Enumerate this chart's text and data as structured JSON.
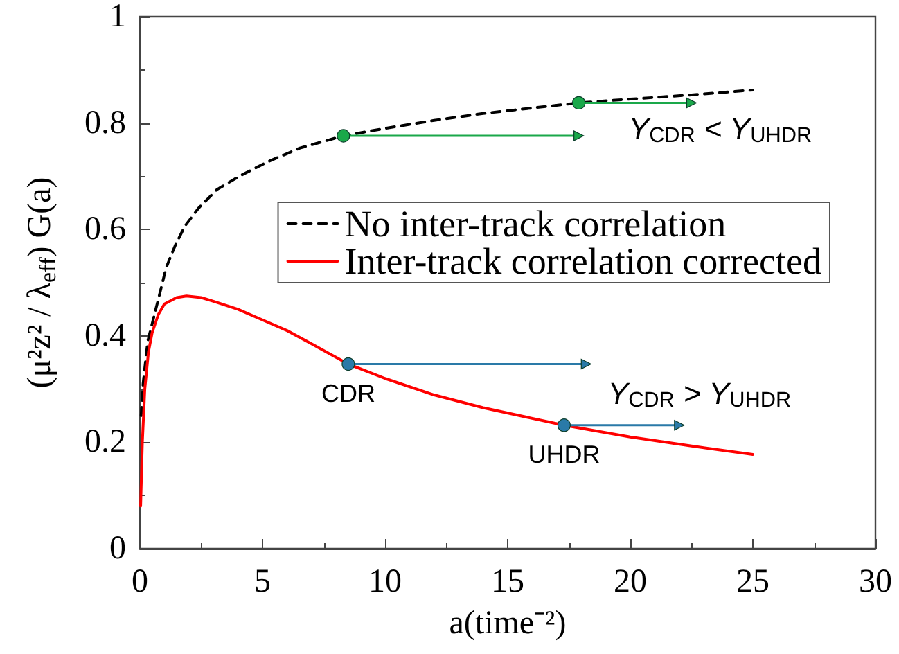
{
  "chart_data": {
    "type": "line",
    "xlabel": "a(time⁻²)",
    "ylabel": "(μ²z² / λ$_{eff}$) G(a)",
    "xlim": [
      0,
      30
    ],
    "xticks": [
      0,
      5,
      10,
      15,
      20,
      25,
      30
    ],
    "ylim": [
      0,
      1
    ],
    "yticks": [
      0,
      0.2,
      0.4,
      0.6,
      0.8,
      1
    ],
    "grid": false,
    "legend": "right",
    "marker": "none",
    "series": [
      {
        "name": "No inter-track correlation",
        "color": "#000000",
        "line_style": "dashed",
        "x": [
          0.05,
          0.13,
          0.32,
          0.79,
          1.07,
          1.45,
          1.83,
          2.39,
          3.14,
          4.09,
          5.2,
          6.53,
          8.3,
          10,
          12,
          14,
          17.9,
          20,
          22.5,
          25
        ],
        "values": [
          0.25,
          0.31,
          0.39,
          0.476,
          0.528,
          0.571,
          0.606,
          0.64,
          0.675,
          0.701,
          0.727,
          0.753,
          0.776,
          0.79,
          0.805,
          0.818,
          0.838,
          0.845,
          0.853,
          0.862
        ]
      },
      {
        "name": "Inter-track correlation corrected",
        "color": "#ff0000",
        "line_style": "solid",
        "x": [
          0.03,
          0.1,
          0.2,
          0.35,
          0.5,
          0.75,
          1,
          1.5,
          1.9,
          2.5,
          3,
          4,
          5,
          6,
          7,
          8.5,
          10,
          12,
          14,
          17.3,
          20,
          22.5,
          25
        ],
        "values": [
          0.08,
          0.2,
          0.3,
          0.37,
          0.406,
          0.44,
          0.46,
          0.472,
          0.475,
          0.472,
          0.465,
          0.45,
          0.43,
          0.41,
          0.385,
          0.347,
          0.32,
          0.289,
          0.265,
          0.232,
          0.21,
          0.193,
          0.177
        ]
      },
      {
        "color": "#1aa84a",
        "marker": "circle",
        "line_style": "solid",
        "x": [
          8.3,
          17.9
        ],
        "values": [
          0.776,
          0.776
        ]
      },
      {
        "color": "#1aa84a",
        "marker": "circle",
        "line_style": "solid",
        "x": [
          17.9,
          22.5
        ],
        "values": [
          0.838,
          0.838
        ]
      },
      {
        "color": "#2a7aa8",
        "marker": "circle",
        "line_style": "solid",
        "x": [
          8.5,
          18.2
        ],
        "values": [
          0.347,
          0.347
        ]
      },
      {
        "color": "#2a7aa8",
        "marker": "circle",
        "line_style": "solid",
        "x": [
          17.3,
          22
        ],
        "values": [
          0.232,
          0.232
        ]
      }
    ],
    "annotations": [
      {
        "text": "CDR",
        "x": 8.5,
        "y": 0.347
      },
      {
        "text": "UHDR",
        "x": 17.3,
        "y": 0.232
      },
      "Y$_{CDR}$ < Y$_{UHDR}$",
      "Y$_{CDR}$ > Y$_{UHDR}$"
    ]
  }
}
